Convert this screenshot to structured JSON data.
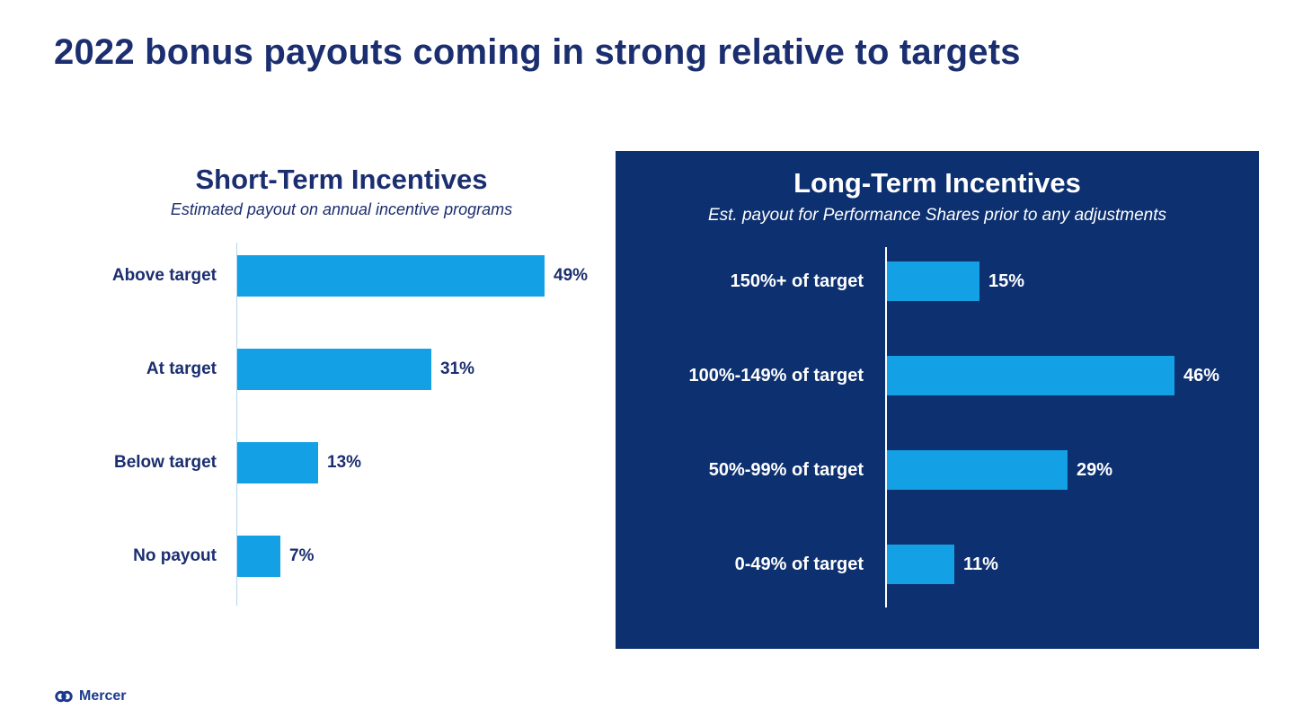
{
  "page": {
    "title": "2022 bonus payouts coming in strong relative to targets"
  },
  "footer": {
    "brand": "Mercer"
  },
  "colors": {
    "navy_text": "#1B2E6F",
    "panel_navy": "#0D3070",
    "bar_blue": "#14A0E4",
    "white": "#FFFFFF",
    "brand_blue": "#1B3A8F"
  },
  "chart_data": [
    {
      "type": "bar",
      "orientation": "horizontal",
      "theme": "light",
      "title": "Short-Term Incentives",
      "subtitle": "Estimated payout on annual incentive programs",
      "categories": [
        "Above target",
        "At target",
        "Below target",
        "No payout"
      ],
      "values": [
        49,
        31,
        13,
        7
      ],
      "value_suffix": "%",
      "xlim": [
        0,
        50
      ],
      "grid": false,
      "legend": false,
      "data_labels": true
    },
    {
      "type": "bar",
      "orientation": "horizontal",
      "theme": "dark",
      "title": "Long-Term Incentives",
      "subtitle": "Est. payout for Performance Shares prior to any adjustments",
      "categories": [
        "150%+ of target",
        "100%-149% of target",
        "50%-99% of target",
        "0-49% of target"
      ],
      "values": [
        15,
        46,
        29,
        11
      ],
      "value_suffix": "%",
      "xlim": [
        0,
        50
      ],
      "grid": false,
      "legend": false,
      "data_labels": true
    }
  ]
}
